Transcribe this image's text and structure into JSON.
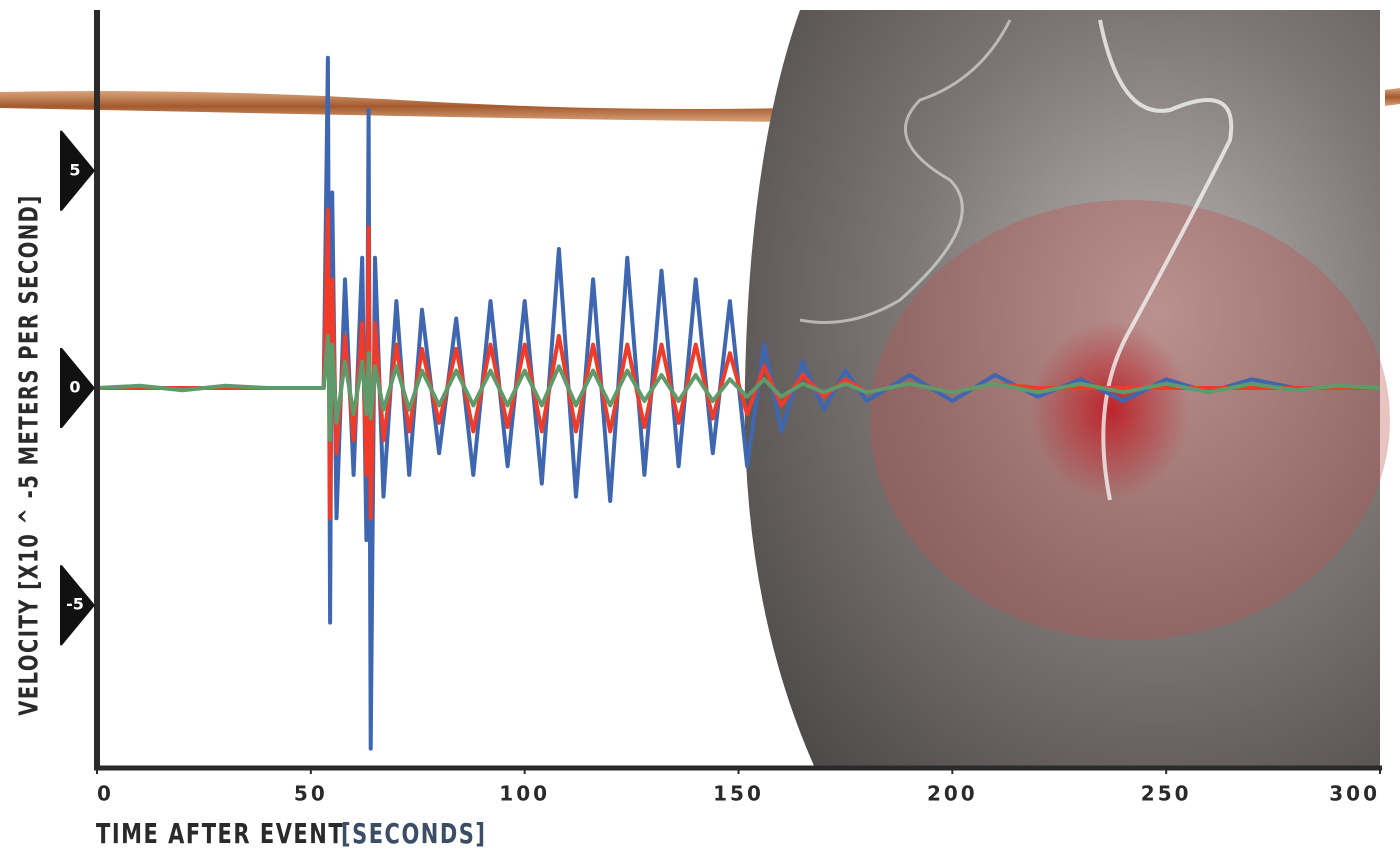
{
  "chart_data": {
    "type": "line",
    "y_label": "VELOCITY [X10 ^ -5 METERS PER SECOND]",
    "x_label": "TIME AFTER EVENT",
    "x_unit": "[SECONDS]",
    "x": [
      0,
      10,
      20,
      30,
      40,
      50,
      53,
      54,
      54.5,
      55,
      56,
      58,
      60,
      62,
      63,
      63.5,
      64,
      65,
      67,
      70,
      73,
      76,
      80,
      84,
      88,
      92,
      96,
      100,
      104,
      108,
      112,
      116,
      120,
      124,
      128,
      132,
      136,
      140,
      144,
      148,
      152,
      156,
      160,
      165,
      170,
      175,
      180,
      190,
      200,
      210,
      220,
      230,
      240,
      250,
      260,
      270,
      280,
      290,
      300
    ],
    "series": [
      {
        "color": "#3f66b0",
        "values": [
          0,
          0,
          0,
          0,
          0,
          0,
          0,
          7.6,
          -5.4,
          4.5,
          -3,
          2.5,
          -2,
          3,
          -3.5,
          6.4,
          -8.3,
          3,
          -2.5,
          2,
          -2,
          1.8,
          -1.5,
          1.6,
          -2,
          2,
          -1.8,
          2,
          -2.2,
          3.2,
          -2.5,
          2.5,
          -2.6,
          3,
          -2,
          2.7,
          -1.8,
          2.5,
          -1.5,
          2,
          -1.8,
          1,
          -1,
          0.6,
          -0.5,
          0.4,
          -0.3,
          0.3,
          -0.3,
          0.3,
          -0.2,
          0.2,
          -0.3,
          0.2,
          -0.1,
          0.2,
          0,
          0,
          0
        ]
      },
      {
        "color": "#ee3b2a",
        "values": [
          0,
          0,
          0,
          0,
          0,
          0,
          0,
          4.1,
          -3,
          2.5,
          -1.5,
          1.2,
          -1.2,
          1.5,
          -2,
          3.7,
          -3,
          1.5,
          -1.2,
          1,
          -1,
          0.9,
          -0.8,
          0.9,
          -1,
          1,
          -0.9,
          1,
          -1,
          1.2,
          -1,
          1,
          -1,
          1,
          -0.9,
          1,
          -0.8,
          1,
          -0.7,
          0.8,
          -0.6,
          0.5,
          -0.4,
          0.3,
          -0.2,
          0.2,
          -0.1,
          0.1,
          -0.1,
          0.1,
          0,
          0,
          0,
          0,
          0,
          0,
          0,
          0,
          0
        ]
      },
      {
        "color": "#5e9a6a",
        "values": [
          0,
          0.05,
          -0.05,
          0.05,
          0,
          0,
          0,
          1.2,
          -1.2,
          1,
          -0.8,
          0.6,
          -0.6,
          0.6,
          -0.6,
          0.8,
          -0.7,
          0.5,
          -0.5,
          0.5,
          -0.5,
          0.4,
          -0.4,
          0.4,
          -0.4,
          0.4,
          -0.4,
          0.4,
          -0.4,
          0.5,
          -0.4,
          0.4,
          -0.4,
          0.4,
          -0.3,
          0.3,
          -0.3,
          0.3,
          -0.3,
          0.2,
          -0.2,
          0.2,
          -0.2,
          0.1,
          -0.1,
          0.1,
          -0.1,
          0.1,
          -0.1,
          0.1,
          -0.1,
          0.1,
          -0.1,
          0.1,
          -0.1,
          0.1,
          -0.05,
          0.05,
          0
        ]
      }
    ],
    "xlim": [
      0,
      300
    ],
    "xticks": [
      0,
      50,
      100,
      150,
      200,
      250,
      300
    ],
    "ylim": [
      -8.7,
      8.7
    ],
    "yticks": [
      -5,
      0,
      5
    ]
  }
}
